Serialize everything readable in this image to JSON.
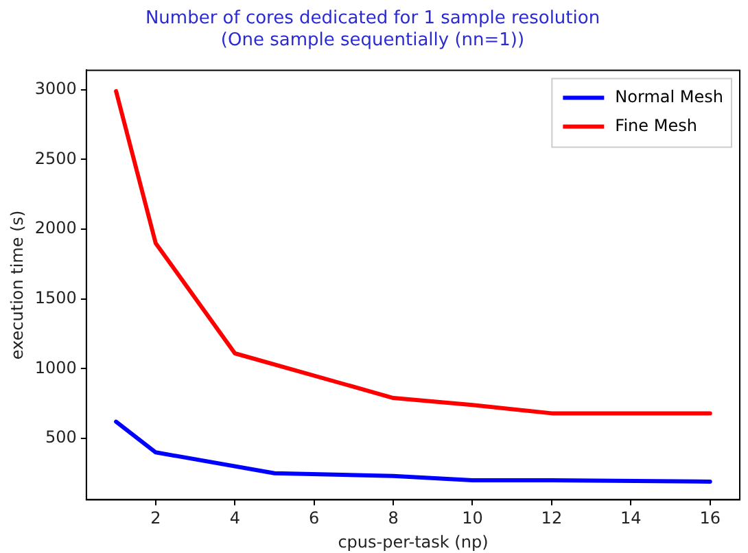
{
  "chart_data": {
    "type": "line",
    "title": "Number of cores dedicated for 1 sample resolution\n(One sample sequentially (nn=1))",
    "xlabel": "cpus-per-task (np)",
    "ylabel": "execution time (s)",
    "series": [
      {
        "name": "Normal Mesh",
        "color": "#0000ff",
        "x": [
          1,
          2,
          5,
          8,
          10,
          12,
          16
        ],
        "values": [
          620,
          400,
          250,
          230,
          200,
          200,
          190
        ]
      },
      {
        "name": "Fine Mesh",
        "color": "#ff0000",
        "x": [
          1,
          2,
          4,
          8,
          10,
          12,
          16
        ],
        "values": [
          2990,
          1900,
          1110,
          790,
          740,
          680,
          680
        ]
      }
    ],
    "xlim": [
      0.25,
      16.75
    ],
    "xticks": [
      2,
      4,
      6,
      8,
      10,
      12,
      14,
      16
    ],
    "ylim": [
      60,
      3140
    ],
    "yticks": [
      500,
      1000,
      1500,
      2000,
      2500,
      3000
    ],
    "grid": false,
    "legend": "top right",
    "marker": "none",
    "line_style": "solid"
  }
}
